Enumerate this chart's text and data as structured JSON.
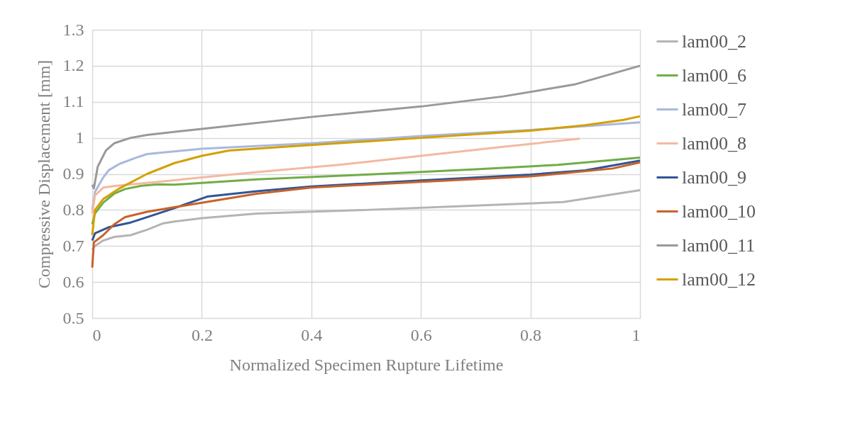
{
  "chart_data": {
    "type": "line",
    "xlabel": "Normalized Specimen Rupture Lifetime",
    "ylabel": "Compressive Displacement [mm]",
    "xlim": [
      0,
      1
    ],
    "xticks": [
      0,
      0.2,
      0.4,
      0.6,
      0.8,
      1
    ],
    "ylim": [
      0.5,
      1.3
    ],
    "yticks": [
      0.5,
      0.6,
      0.7,
      0.8,
      0.9,
      1,
      1.1,
      1.2,
      1.3
    ],
    "grid": true,
    "legend": "right",
    "marker": "none",
    "line_style": "solid",
    "series": [
      {
        "name": "lam00_2",
        "color": "#b4b4b4",
        "x": [
          0,
          0.005,
          0.02,
          0.04,
          0.07,
          0.1,
          0.13,
          0.15,
          0.2,
          0.3,
          0.5,
          0.7,
          0.86,
          1
        ],
        "values": [
          0.69,
          0.7,
          0.715,
          0.725,
          0.73,
          0.745,
          0.763,
          0.768,
          0.777,
          0.79,
          0.8,
          0.812,
          0.822,
          0.855
        ]
      },
      {
        "name": "lam00_6",
        "color": "#70ad47",
        "x": [
          0,
          0.005,
          0.02,
          0.04,
          0.06,
          0.09,
          0.12,
          0.15,
          0.2,
          0.3,
          0.5,
          0.7,
          0.85,
          1
        ],
        "values": [
          0.76,
          0.79,
          0.82,
          0.845,
          0.858,
          0.867,
          0.871,
          0.87,
          0.875,
          0.885,
          0.898,
          0.913,
          0.925,
          0.945
        ]
      },
      {
        "name": "lam00_7",
        "color": "#a9b8dd",
        "x": [
          0,
          0.005,
          0.02,
          0.03,
          0.05,
          0.08,
          0.1,
          0.2,
          0.4,
          0.6,
          0.8,
          1
        ],
        "values": [
          0.8,
          0.85,
          0.89,
          0.91,
          0.928,
          0.945,
          0.955,
          0.97,
          0.985,
          1.005,
          1.022,
          1.043
        ]
      },
      {
        "name": "lam00_8",
        "color": "#f4b9a0",
        "x": [
          0,
          0.005,
          0.02,
          0.05,
          0.1,
          0.2,
          0.3,
          0.45,
          0.6,
          0.75,
          0.89
        ],
        "values": [
          0.79,
          0.84,
          0.862,
          0.868,
          0.875,
          0.89,
          0.905,
          0.925,
          0.95,
          0.975,
          0.998
        ]
      },
      {
        "name": "lam00_9",
        "color": "#2f5597",
        "x": [
          0,
          0.005,
          0.03,
          0.07,
          0.1,
          0.15,
          0.21,
          0.3,
          0.4,
          0.6,
          0.8,
          0.9,
          1
        ],
        "values": [
          0.715,
          0.735,
          0.752,
          0.765,
          0.78,
          0.805,
          0.837,
          0.852,
          0.865,
          0.882,
          0.898,
          0.91,
          0.937
        ]
      },
      {
        "name": "lam00_10",
        "color": "#c8622a",
        "x": [
          0,
          0.003,
          0.02,
          0.04,
          0.06,
          0.1,
          0.2,
          0.3,
          0.4,
          0.5,
          0.6,
          0.8,
          0.95,
          1
        ],
        "values": [
          0.64,
          0.71,
          0.73,
          0.76,
          0.78,
          0.795,
          0.82,
          0.845,
          0.862,
          0.87,
          0.878,
          0.893,
          0.915,
          0.932
        ]
      },
      {
        "name": "lam00_11",
        "color": "#999999",
        "x": [
          0,
          0.003,
          0.01,
          0.025,
          0.04,
          0.07,
          0.1,
          0.2,
          0.4,
          0.6,
          0.75,
          0.88,
          1
        ],
        "values": [
          0.87,
          0.86,
          0.92,
          0.965,
          0.985,
          1.0,
          1.008,
          1.025,
          1.058,
          1.087,
          1.115,
          1.148,
          1.2
        ]
      },
      {
        "name": "lam00_12",
        "color": "#d4a000",
        "x": [
          0,
          0.005,
          0.02,
          0.05,
          0.1,
          0.15,
          0.2,
          0.25,
          0.35,
          0.5,
          0.6,
          0.8,
          0.9,
          0.97,
          1
        ],
        "values": [
          0.73,
          0.8,
          0.83,
          0.86,
          0.9,
          0.93,
          0.95,
          0.965,
          0.975,
          0.99,
          1.0,
          1.02,
          1.035,
          1.05,
          1.06
        ]
      }
    ]
  }
}
